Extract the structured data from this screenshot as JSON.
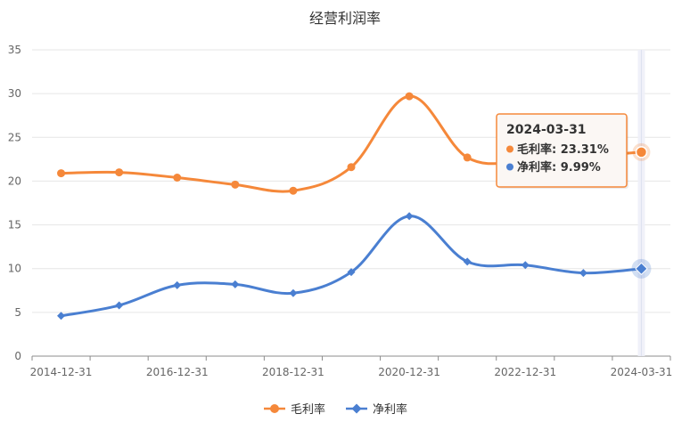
{
  "chart_data": {
    "type": "line",
    "title": "经营利润率",
    "x": [
      "2014-12-31",
      "2015-12-31",
      "2016-12-31",
      "2017-12-31",
      "2018-12-31",
      "2019-12-31",
      "2020-12-31",
      "2021-12-31",
      "2022-12-31",
      "2023-12-31",
      "2024-03-31"
    ],
    "x_tick_labels": [
      "2014-12-31",
      "2016-12-31",
      "2018-12-31",
      "2020-12-31",
      "2022-12-31",
      "2024-03-31"
    ],
    "ylim": [
      0,
      35
    ],
    "y_ticks": [
      "0",
      "5",
      "10",
      "15",
      "20",
      "25",
      "30",
      "35"
    ],
    "grid": true,
    "legend_position": "bottom-center",
    "series": [
      {
        "name": "毛利率",
        "color": "#f5883a",
        "marker": "circle",
        "values": [
          20.9,
          21.0,
          20.4,
          19.6,
          18.9,
          21.6,
          29.7,
          22.7,
          22.3,
          22.8,
          23.31
        ]
      },
      {
        "name": "净利率",
        "color": "#4a7fd1",
        "marker": "diamond",
        "values": [
          4.6,
          5.8,
          8.1,
          8.2,
          7.2,
          9.6,
          16.0,
          10.8,
          10.4,
          9.5,
          9.99
        ]
      }
    ],
    "tooltip": {
      "title": "2024-03-31",
      "lines": [
        "毛利率: 23.31%",
        "净利率: 9.99%"
      ]
    }
  }
}
